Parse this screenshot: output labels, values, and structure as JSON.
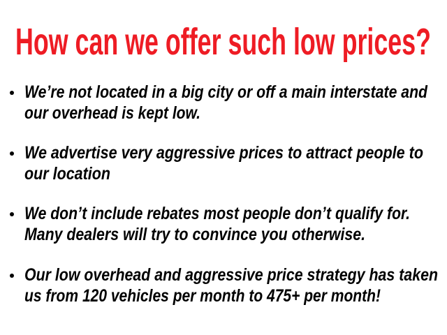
{
  "title": "How can we offer such low prices?",
  "colors": {
    "title": "#ee1c24",
    "text": "#000000",
    "background": "#ffffff"
  },
  "bullets": [
    {
      "lines": [
        "We’re not located in a big city or off a main interstate and",
        "our overhead is kept low."
      ]
    },
    {
      "lines": [
        "We advertise very aggressive prices to attract people to",
        "our location"
      ]
    },
    {
      "lines": [
        "We don’t include rebates most people don’t qualify for.",
        "Many dealers will try to convince you otherwise."
      ]
    },
    {
      "lines": [
        "Our low overhead and aggressive price strategy has taken",
        "us from 120 vehicles per month to 475+ per month!"
      ]
    }
  ]
}
